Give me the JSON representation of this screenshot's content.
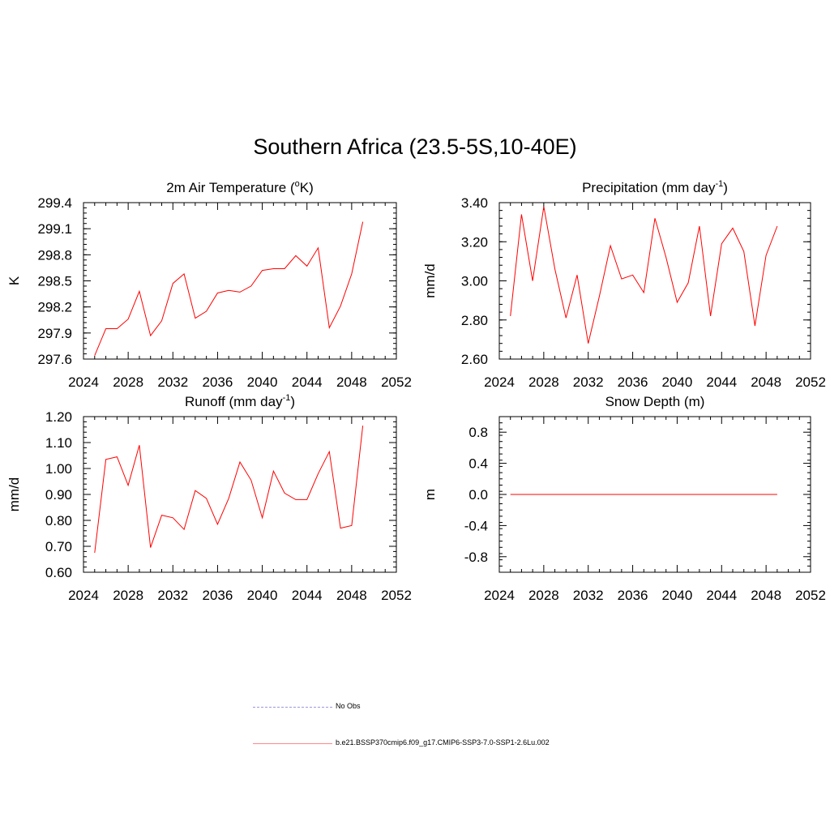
{
  "title": "Southern Africa (23.5-5S,10-40E)",
  "legend": {
    "obs_label": "No Obs",
    "model_label": "b.e21.BSSP370cmip6.f09_g17.CMIP6-SSP3-7.0-SSP1-2.6Lu.002"
  },
  "colors": {
    "model_line": "#ff0000",
    "obs_line": "#9999dd"
  },
  "chart_data": [
    {
      "type": "line",
      "title": "2m Air Temperature (",
      "title_sup": "o",
      "title_after": "K)",
      "ylabel": "K",
      "xlim": [
        2024,
        2052
      ],
      "ylim": [
        297.6,
        299.4
      ],
      "xticks": [
        2024,
        2028,
        2032,
        2036,
        2040,
        2044,
        2048,
        2052
      ],
      "xtick_labels": [
        "2024",
        "2028",
        "2032",
        "2036",
        "2040",
        "2044",
        "2048",
        "2052"
      ],
      "yticks": [
        297.6,
        297.9,
        298.2,
        298.5,
        298.8,
        299.1,
        299.4
      ],
      "ytick_labels": [
        "297.6",
        "297.9",
        "298.2",
        "298.5",
        "298.8",
        "299.1",
        "299.4"
      ],
      "yminor": 0.06,
      "x": [
        2025,
        2026,
        2027,
        2028,
        2029,
        2030,
        2031,
        2032,
        2033,
        2034,
        2035,
        2036,
        2037,
        2038,
        2039,
        2040,
        2041,
        2042,
        2043,
        2044,
        2045,
        2046,
        2047,
        2048,
        2049
      ],
      "values": [
        297.64,
        297.95,
        297.95,
        298.06,
        298.38,
        297.87,
        298.04,
        298.47,
        298.58,
        298.07,
        298.15,
        298.36,
        298.39,
        298.37,
        298.44,
        298.62,
        298.64,
        298.64,
        298.79,
        298.67,
        298.88,
        297.96,
        298.21,
        298.58,
        299.18
      ]
    },
    {
      "type": "line",
      "title": "Precipitation (mm day",
      "title_sup": "-1",
      "title_after": ")",
      "ylabel": "mm/d",
      "xlim": [
        2024,
        2052
      ],
      "ylim": [
        2.6,
        3.4
      ],
      "xticks": [
        2024,
        2028,
        2032,
        2036,
        2040,
        2044,
        2048,
        2052
      ],
      "xtick_labels": [
        "2024",
        "2028",
        "2032",
        "2036",
        "2040",
        "2044",
        "2048",
        "2052"
      ],
      "yticks": [
        2.6,
        2.8,
        3.0,
        3.2,
        3.4
      ],
      "ytick_labels": [
        "2.60",
        "2.80",
        "3.00",
        "3.20",
        "3.40"
      ],
      "yminor": 0.04,
      "x": [
        2025,
        2026,
        2027,
        2028,
        2029,
        2030,
        2031,
        2032,
        2033,
        2034,
        2035,
        2036,
        2037,
        2038,
        2039,
        2040,
        2041,
        2042,
        2043,
        2044,
        2045,
        2046,
        2047,
        2048,
        2049
      ],
      "values": [
        2.82,
        3.34,
        3.0,
        3.38,
        3.06,
        2.81,
        3.03,
        2.68,
        2.92,
        3.18,
        3.01,
        3.03,
        2.94,
        3.32,
        3.12,
        2.89,
        2.99,
        3.28,
        2.82,
        3.19,
        3.27,
        3.15,
        2.77,
        3.13,
        3.28
      ]
    },
    {
      "type": "line",
      "title": "Runoff (mm day",
      "title_sup": "-1",
      "title_after": ")",
      "ylabel": "mm/d",
      "xlim": [
        2024,
        2052
      ],
      "ylim": [
        0.6,
        1.2
      ],
      "xticks": [
        2024,
        2028,
        2032,
        2036,
        2040,
        2044,
        2048,
        2052
      ],
      "xtick_labels": [
        "2024",
        "2028",
        "2032",
        "2036",
        "2040",
        "2044",
        "2048",
        "2052"
      ],
      "yticks": [
        0.6,
        0.7,
        0.8,
        0.9,
        1.0,
        1.1,
        1.2
      ],
      "ytick_labels": [
        "0.60",
        "0.70",
        "0.80",
        "0.90",
        "1.00",
        "1.10",
        "1.20"
      ],
      "yminor": 0.02,
      "x": [
        2025,
        2026,
        2027,
        2028,
        2029,
        2030,
        2031,
        2032,
        2033,
        2034,
        2035,
        2036,
        2037,
        2038,
        2039,
        2040,
        2041,
        2042,
        2043,
        2044,
        2045,
        2046,
        2047,
        2048,
        2049
      ],
      "values": [
        0.675,
        1.035,
        1.045,
        0.935,
        1.09,
        0.695,
        0.82,
        0.81,
        0.765,
        0.915,
        0.885,
        0.785,
        0.885,
        1.025,
        0.955,
        0.81,
        0.99,
        0.905,
        0.88,
        0.88,
        0.98,
        1.065,
        0.77,
        0.78,
        1.165
      ]
    },
    {
      "type": "line",
      "title": "Snow Depth (m)",
      "title_sup": "",
      "title_after": "",
      "ylabel": "m",
      "xlim": [
        2024,
        2052
      ],
      "ylim": [
        -1.0,
        1.0
      ],
      "xticks": [
        2024,
        2028,
        2032,
        2036,
        2040,
        2044,
        2048,
        2052
      ],
      "xtick_labels": [
        "2024",
        "2028",
        "2032",
        "2036",
        "2040",
        "2044",
        "2048",
        "2052"
      ],
      "yticks": [
        -0.8,
        -0.4,
        0.0,
        0.4,
        0.8
      ],
      "ytick_labels": [
        "-0.8",
        "-0.4",
        "0.0",
        "0.4",
        "0.8"
      ],
      "yminor": 0.08,
      "x": [
        2025,
        2026,
        2027,
        2028,
        2029,
        2030,
        2031,
        2032,
        2033,
        2034,
        2035,
        2036,
        2037,
        2038,
        2039,
        2040,
        2041,
        2042,
        2043,
        2044,
        2045,
        2046,
        2047,
        2048,
        2049
      ],
      "values": [
        0,
        0,
        0,
        0,
        0,
        0,
        0,
        0,
        0,
        0,
        0,
        0,
        0,
        0,
        0,
        0,
        0,
        0,
        0,
        0,
        0,
        0,
        0,
        0,
        0
      ]
    }
  ]
}
